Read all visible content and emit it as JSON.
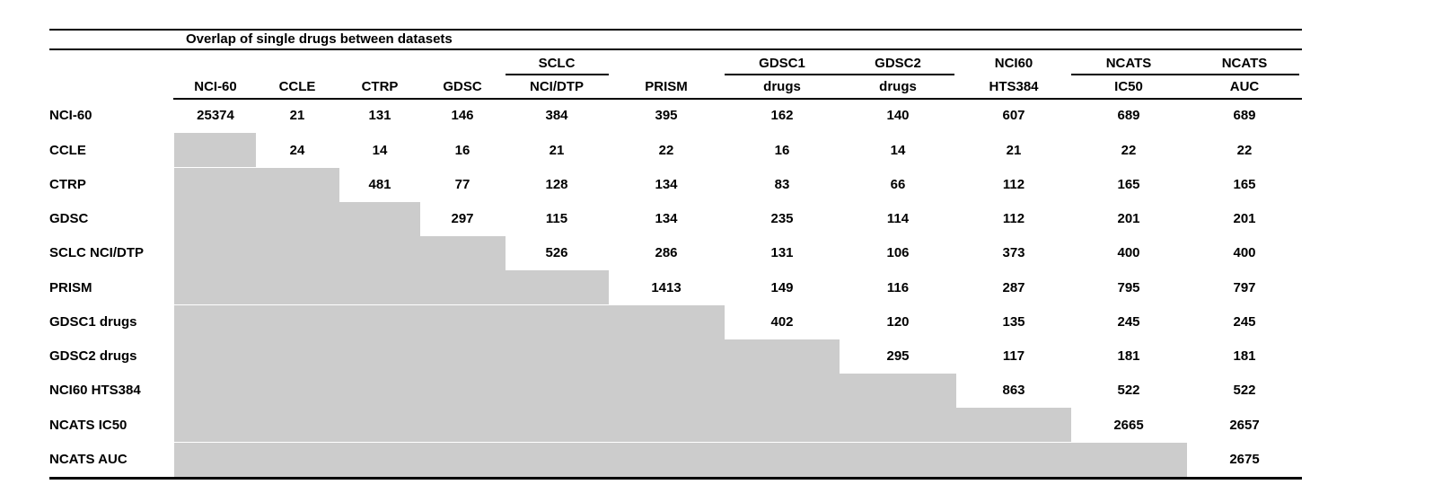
{
  "title": "Overlap of single drugs between datasets",
  "table": {
    "column_groups": [
      {
        "label": "SCLC",
        "col": 4
      },
      {
        "label": "GDSC1",
        "col": 6
      },
      {
        "label": "GDSC2",
        "col": 7
      },
      {
        "label": "NCI60",
        "col": 8
      },
      {
        "label": "NCATS",
        "col": 9
      },
      {
        "label": "NCATS",
        "col": 10
      }
    ],
    "column_headers": [
      "NCI-60",
      "CCLE",
      "CTRP",
      "GDSC",
      "NCI/DTP",
      "PRISM",
      "drugs",
      "drugs",
      "HTS384",
      "IC50",
      "AUC"
    ],
    "row_labels": [
      "NCI-60",
      "CCLE",
      "CTRP",
      "GDSC",
      "SCLC NCI/DTP",
      "PRISM",
      "GDSC1 drugs",
      "GDSC2 drugs",
      "NCI60 HTS384",
      "NCATS IC50",
      "NCATS AUC"
    ],
    "matrix": [
      [
        25374,
        21,
        131,
        146,
        384,
        395,
        162,
        140,
        607,
        689,
        689
      ],
      [
        null,
        24,
        14,
        16,
        21,
        22,
        16,
        14,
        21,
        22,
        22
      ],
      [
        null,
        null,
        481,
        77,
        128,
        134,
        83,
        66,
        112,
        165,
        165
      ],
      [
        null,
        null,
        null,
        297,
        115,
        134,
        235,
        114,
        112,
        201,
        201
      ],
      [
        null,
        null,
        null,
        null,
        526,
        286,
        131,
        106,
        373,
        400,
        400
      ],
      [
        null,
        null,
        null,
        null,
        null,
        1413,
        149,
        116,
        287,
        795,
        797
      ],
      [
        null,
        null,
        null,
        null,
        null,
        null,
        402,
        120,
        135,
        245,
        245
      ],
      [
        null,
        null,
        null,
        null,
        null,
        null,
        null,
        295,
        117,
        181,
        181
      ],
      [
        null,
        null,
        null,
        null,
        null,
        null,
        null,
        null,
        863,
        522,
        522
      ],
      [
        null,
        null,
        null,
        null,
        null,
        null,
        null,
        null,
        null,
        2665,
        2657
      ],
      [
        null,
        null,
        null,
        null,
        null,
        null,
        null,
        null,
        null,
        null,
        2675
      ]
    ]
  },
  "colors": {
    "background": "#ffffff",
    "text": "#000000",
    "rule": "#000000",
    "shaded_cell": "#cccccc"
  }
}
